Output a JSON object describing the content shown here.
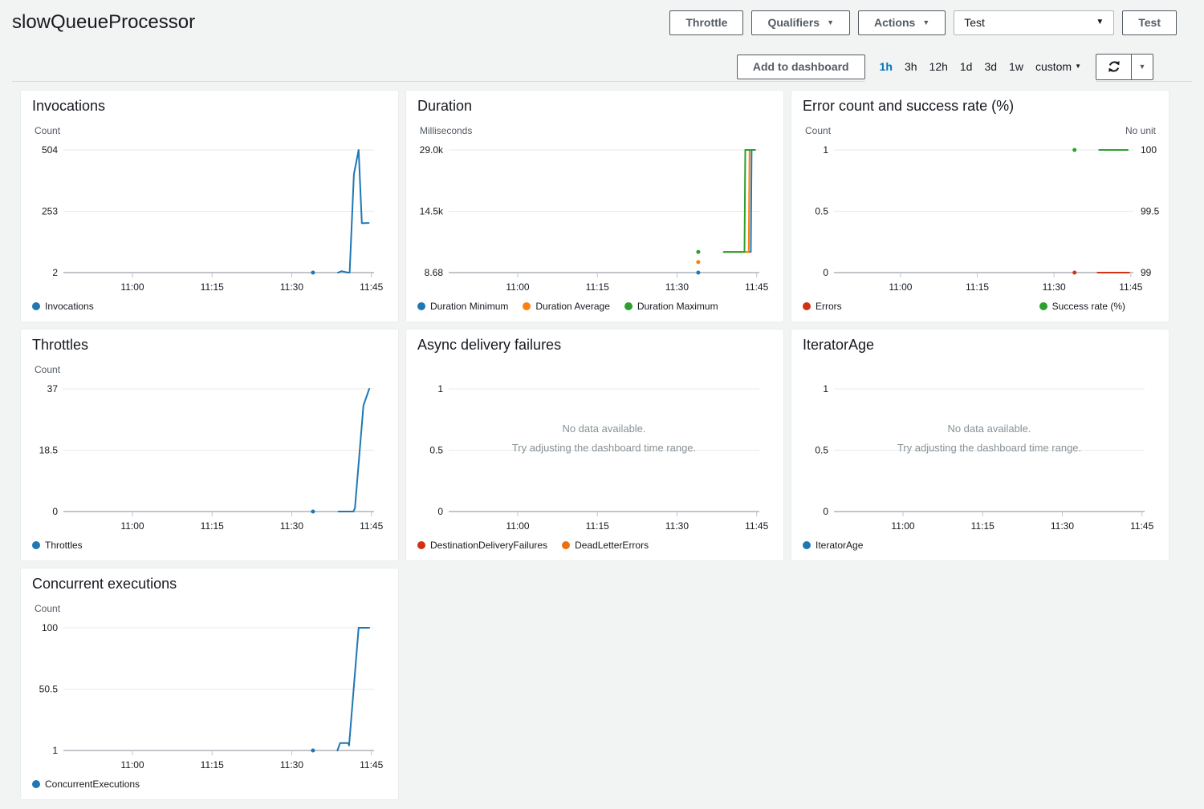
{
  "header": {
    "title": "slowQueueProcessor",
    "throttle_button": "Throttle",
    "qualifiers_button": "Qualifiers",
    "actions_button": "Actions",
    "test_select_value": "Test",
    "test_button": "Test",
    "caret_icon": "▼"
  },
  "toolbar": {
    "add_to_dashboard_button": "Add to dashboard",
    "ranges": [
      {
        "label": "1h",
        "selected": true
      },
      {
        "label": "3h",
        "selected": false
      },
      {
        "label": "12h",
        "selected": false
      },
      {
        "label": "1d",
        "selected": false
      },
      {
        "label": "3d",
        "selected": false
      },
      {
        "label": "1w",
        "selected": false
      },
      {
        "label": "custom",
        "selected": false,
        "caret": true
      }
    ],
    "refresh_caret": "▼"
  },
  "colors": {
    "accent_link": "#0073bb",
    "page_bg": "#f2f3f3",
    "grid_light": "#e7e8ea",
    "grid_base": "#c1c5c9",
    "muted_text": "#879196",
    "series_blue": "#1f77b4",
    "series_orange": "#ff7f0e",
    "series_green": "#2ca02c",
    "series_red": "#d13212",
    "series_deadletter_orange": "#ec7211"
  },
  "chart_data": [
    {
      "type": "line",
      "title": "Invocations",
      "unit_left": "Count",
      "unit_right": null,
      "x_domain": [
        647,
        705.5
      ],
      "x_ticks": [
        {
          "t": 660,
          "label": "11:00"
        },
        {
          "t": 675,
          "label": "11:15"
        },
        {
          "t": 690,
          "label": "11:30"
        },
        {
          "t": 705,
          "label": "11:45"
        }
      ],
      "y_left": {
        "domain": [
          2,
          504
        ],
        "labels": [
          "504",
          "253",
          "2"
        ]
      },
      "y_right": null,
      "series": [
        {
          "name": "Invocations",
          "color": "#1f77b4",
          "axis": "left",
          "dots": [
            [
              694,
              2
            ]
          ],
          "points": [
            [
              698.7,
              2
            ],
            [
              699.4,
              8
            ],
            [
              700.6,
              2
            ],
            [
              700.9,
              2
            ],
            [
              701.7,
              404
            ],
            [
              702.6,
              504
            ],
            [
              703.2,
              204
            ],
            [
              704.5,
              205
            ]
          ]
        }
      ],
      "legend": [
        {
          "label": "Invocations",
          "color": "#1f77b4"
        }
      ],
      "legend_layout": "row",
      "no_data": null
    },
    {
      "type": "line",
      "title": "Duration",
      "unit_left": "Milliseconds",
      "unit_right": null,
      "x_domain": [
        647,
        705.5
      ],
      "x_ticks": [
        {
          "t": 660,
          "label": "11:00"
        },
        {
          "t": 675,
          "label": "11:15"
        },
        {
          "t": 690,
          "label": "11:30"
        },
        {
          "t": 705,
          "label": "11:45"
        }
      ],
      "y_left": {
        "domain": [
          8.68,
          29000
        ],
        "labels": [
          "29.0k",
          "14.5k",
          "8.68"
        ]
      },
      "y_right": null,
      "series": [
        {
          "name": "Duration Minimum",
          "color": "#1f77b4",
          "axis": "left",
          "dots": [
            [
              694,
              8.68
            ]
          ],
          "points": [
            [
              698.8,
              4900
            ],
            [
              703.9,
              4900
            ],
            [
              704.05,
              29000
            ],
            [
              704.7,
              29000
            ]
          ]
        },
        {
          "name": "Duration Average",
          "color": "#ff7f0e",
          "axis": "left",
          "dots": [
            [
              694,
              2500
            ]
          ],
          "points": [
            [
              698.8,
              4900
            ],
            [
              703.5,
              4900
            ],
            [
              703.65,
              29000
            ],
            [
              704.7,
              29000
            ]
          ]
        },
        {
          "name": "Duration Maximum",
          "color": "#2ca02c",
          "axis": "left",
          "dots": [
            [
              694,
              4900
            ]
          ],
          "points": [
            [
              698.8,
              4900
            ],
            [
              702.7,
              4900
            ],
            [
              702.85,
              29000
            ],
            [
              704.7,
              29000
            ]
          ]
        }
      ],
      "legend": [
        {
          "label": "Duration Minimum",
          "color": "#1f77b4"
        },
        {
          "label": "Duration Average",
          "color": "#ff7f0e"
        },
        {
          "label": "Duration Maximum",
          "color": "#2ca02c"
        }
      ],
      "legend_layout": "row",
      "no_data": null
    },
    {
      "type": "line",
      "title": "Error count and success rate (%)",
      "unit_left": "Count",
      "unit_right": "No unit",
      "x_domain": [
        647,
        705.5
      ],
      "x_ticks": [
        {
          "t": 660,
          "label": "11:00"
        },
        {
          "t": 675,
          "label": "11:15"
        },
        {
          "t": 690,
          "label": "11:30"
        },
        {
          "t": 705,
          "label": "11:45"
        }
      ],
      "y_left": {
        "domain": [
          0,
          1
        ],
        "labels": [
          "1",
          "0.5",
          "0"
        ]
      },
      "y_right": {
        "domain": [
          99,
          100
        ],
        "labels": [
          "100",
          "99.5",
          "99"
        ]
      },
      "series": [
        {
          "name": "Errors",
          "color": "#d13212",
          "axis": "left",
          "dots": [
            [
              694,
              0
            ]
          ],
          "points": [
            [
              698.5,
              0
            ],
            [
              704.7,
              0
            ]
          ]
        },
        {
          "name": "Success rate (%)",
          "color": "#2ca02c",
          "axis": "right",
          "dots": [
            [
              694,
              100
            ]
          ],
          "points": [
            [
              698.8,
              100
            ],
            [
              704.4,
              100
            ]
          ]
        }
      ],
      "legend": [
        {
          "label": "Errors",
          "color": "#d13212"
        },
        {
          "label": "Success rate (%)",
          "color": "#2ca02c"
        }
      ],
      "legend_layout": "split",
      "no_data": null
    },
    {
      "type": "line",
      "title": "Throttles",
      "unit_left": "Count",
      "unit_right": null,
      "x_domain": [
        647,
        705.5
      ],
      "x_ticks": [
        {
          "t": 660,
          "label": "11:00"
        },
        {
          "t": 675,
          "label": "11:15"
        },
        {
          "t": 690,
          "label": "11:30"
        },
        {
          "t": 705,
          "label": "11:45"
        }
      ],
      "y_left": {
        "domain": [
          0,
          37
        ],
        "labels": [
          "37",
          "18.5",
          "0"
        ]
      },
      "y_right": null,
      "series": [
        {
          "name": "Throttles",
          "color": "#1f77b4",
          "axis": "left",
          "dots": [
            [
              694,
              0
            ]
          ],
          "points": [
            [
              698.8,
              0
            ],
            [
              701.6,
              0
            ],
            [
              701.9,
              1
            ],
            [
              703.5,
              32
            ],
            [
              704.6,
              37
            ]
          ]
        }
      ],
      "legend": [
        {
          "label": "Throttles",
          "color": "#1f77b4"
        }
      ],
      "legend_layout": "row",
      "no_data": null
    },
    {
      "type": "line",
      "title": "Async delivery failures",
      "unit_left": null,
      "unit_right": null,
      "x_domain": [
        647,
        705.5
      ],
      "x_ticks": [
        {
          "t": 660,
          "label": "11:00"
        },
        {
          "t": 675,
          "label": "11:15"
        },
        {
          "t": 690,
          "label": "11:30"
        },
        {
          "t": 705,
          "label": "11:45"
        }
      ],
      "y_left": {
        "domain": [
          0,
          1
        ],
        "labels": [
          "1",
          "0.5",
          "0"
        ]
      },
      "y_right": null,
      "series": [],
      "legend": [
        {
          "label": "DestinationDeliveryFailures",
          "color": "#d13212"
        },
        {
          "label": "DeadLetterErrors",
          "color": "#ec7211"
        }
      ],
      "legend_layout": "row",
      "no_data": {
        "line1": "No data available.",
        "line2": "Try adjusting the dashboard time range."
      }
    },
    {
      "type": "line",
      "title": "IteratorAge",
      "unit_left": null,
      "unit_right": null,
      "x_domain": [
        647,
        705.5
      ],
      "x_ticks": [
        {
          "t": 660,
          "label": "11:00"
        },
        {
          "t": 675,
          "label": "11:15"
        },
        {
          "t": 690,
          "label": "11:30"
        },
        {
          "t": 705,
          "label": "11:45"
        }
      ],
      "y_left": {
        "domain": [
          0,
          1
        ],
        "labels": [
          "1",
          "0.5",
          "0"
        ]
      },
      "y_right": null,
      "series": [],
      "legend": [
        {
          "label": "IteratorAge",
          "color": "#1f77b4"
        }
      ],
      "legend_layout": "row",
      "no_data": {
        "line1": "No data available.",
        "line2": "Try adjusting the dashboard time range."
      }
    },
    {
      "type": "line",
      "title": "Concurrent executions",
      "unit_left": "Count",
      "unit_right": null,
      "x_domain": [
        647,
        705.5
      ],
      "x_ticks": [
        {
          "t": 660,
          "label": "11:00"
        },
        {
          "t": 675,
          "label": "11:15"
        },
        {
          "t": 690,
          "label": "11:30"
        },
        {
          "t": 705,
          "label": "11:45"
        }
      ],
      "y_left": {
        "domain": [
          1,
          100
        ],
        "labels": [
          "100",
          "50.5",
          "1"
        ]
      },
      "y_right": null,
      "series": [
        {
          "name": "ConcurrentExecutions",
          "color": "#1f77b4",
          "axis": "left",
          "dots": [
            [
              694,
              1
            ]
          ],
          "points": [
            [
              698.6,
              1
            ],
            [
              699.1,
              7
            ],
            [
              700.6,
              7
            ],
            [
              700.8,
              5
            ],
            [
              702.6,
              100
            ],
            [
              704.6,
              100
            ]
          ]
        }
      ],
      "legend": [
        {
          "label": "ConcurrentExecutions",
          "color": "#1f77b4"
        }
      ],
      "legend_layout": "row",
      "no_data": null
    }
  ]
}
